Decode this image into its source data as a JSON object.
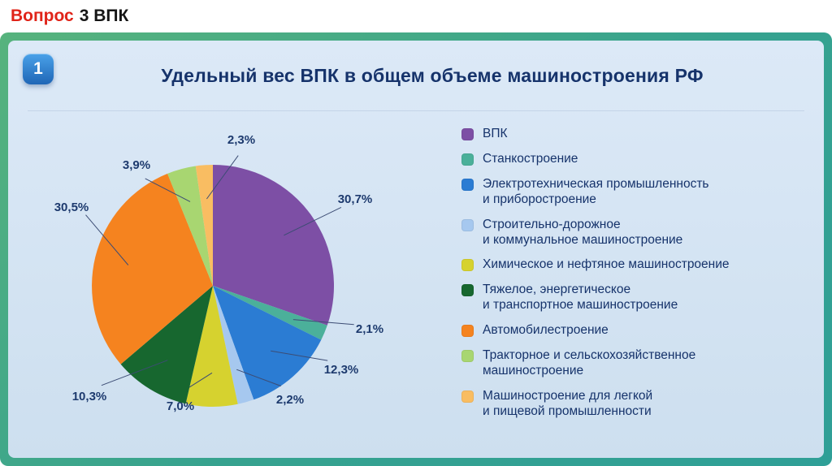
{
  "header": {
    "question_word": "Вопрос",
    "rest": "3 ВПК"
  },
  "slide": {
    "number": "1",
    "title": "Удельный вес ВПК в общем объеме машиностроения РФ"
  },
  "chart_data": {
    "type": "pie",
    "title": "Удельный вес ВПК в общем объеме машиностроения РФ",
    "legend_position": "right",
    "value_format": "percent-comma-decimal",
    "slices": [
      {
        "label": "ВПК",
        "value": 30.7,
        "display": "30,7%",
        "color": "#7d4fa5"
      },
      {
        "label": "Станкостроение",
        "value": 2.1,
        "display": "2,1%",
        "color": "#4bb09a"
      },
      {
        "label": "Электротехническая промышленность\nи приборостроение",
        "value": 12.3,
        "display": "12,3%",
        "color": "#2b7cd3"
      },
      {
        "label": "Строительно-дорожное\nи коммунальное машиностроение",
        "value": 2.2,
        "display": "2,2%",
        "color": "#a6c8ef"
      },
      {
        "label": "Химическое и нефтяное машиностроение",
        "value": 7.0,
        "display": "7,0%",
        "color": "#d6d22f"
      },
      {
        "label": "Тяжелое, энергетическое\nи транспортное машиностроение",
        "value": 10.3,
        "display": "10,3%",
        "color": "#17672f"
      },
      {
        "label": "Автомобилестроение",
        "value": 30.5,
        "display": "30,5%",
        "color": "#f5831f"
      },
      {
        "label": "Тракторное и сельскохозяйственное\nмашиностроение",
        "value": 3.9,
        "display": "3,9%",
        "color": "#a8d671"
      },
      {
        "label": "Машиностроение для легкой\nи пищевой промышленности",
        "value": 2.3,
        "display": "2,3%",
        "color": "#f9bd62"
      }
    ]
  }
}
